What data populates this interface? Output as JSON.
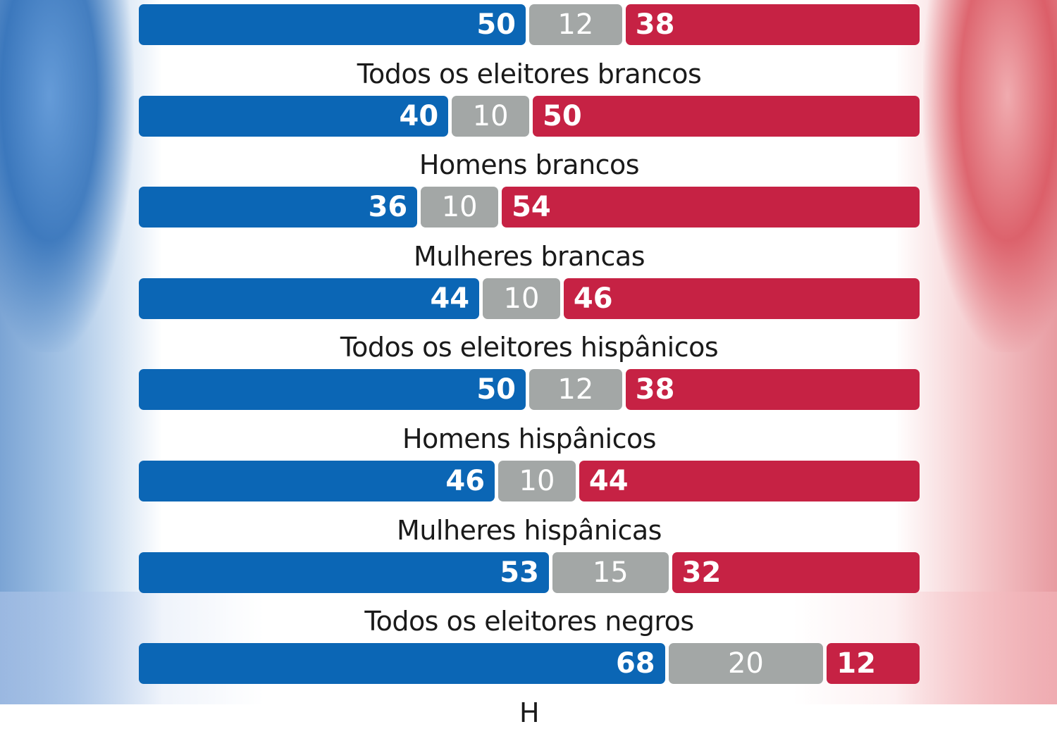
{
  "colors": {
    "democrat": "#0b66b5",
    "undecided": "#a3a7a6",
    "republican": "#c62244"
  },
  "chart_data": {
    "type": "bar",
    "stacked": true,
    "orientation": "horizontal",
    "categories": [
      "",
      "Todos os eleitores brancos",
      "Homens brancos",
      "Mulheres brancas",
      "Todos os eleitores hispânicos",
      "Homens hispânicos",
      "Mulheres hispânicas",
      "Todos os eleitores negros",
      "H"
    ],
    "series": [
      {
        "values": [
          50,
          40,
          36,
          44,
          50,
          46,
          53,
          68,
          null
        ]
      },
      {
        "values": [
          12,
          10,
          10,
          10,
          12,
          10,
          15,
          20,
          null
        ]
      },
      {
        "values": [
          38,
          50,
          54,
          46,
          38,
          44,
          32,
          12,
          null
        ]
      }
    ],
    "xlim": [
      0,
      100
    ]
  }
}
